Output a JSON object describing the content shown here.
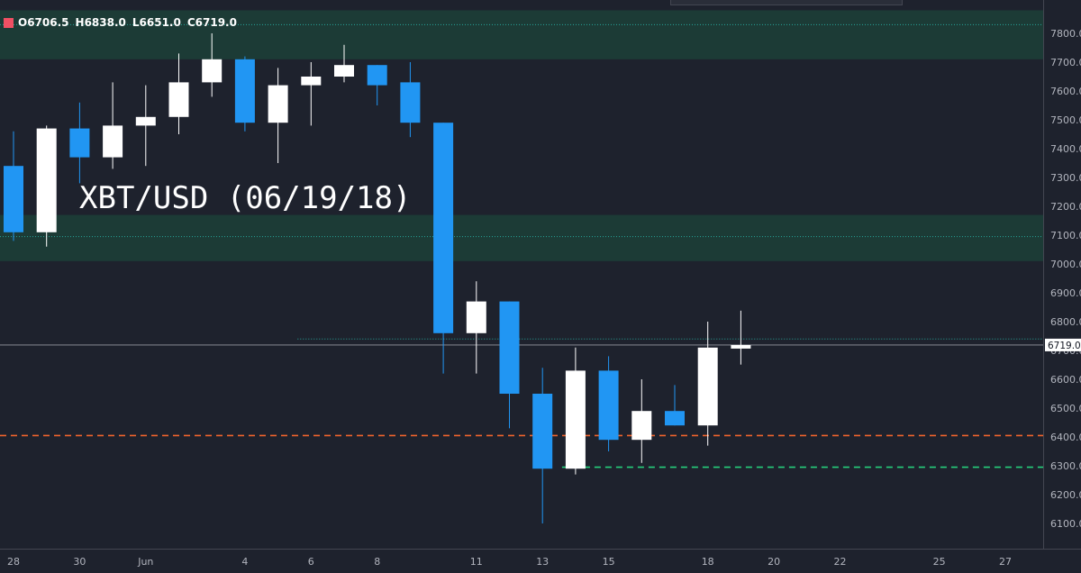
{
  "symbol_title": "XBT/USD (06/19/18)",
  "ohlc": {
    "open_label": "O",
    "open": "6706.5",
    "high_label": "H",
    "high": "6838.0",
    "low_label": "L",
    "low": "6651.0",
    "close_label": "C",
    "close": "6719.0"
  },
  "colors": {
    "background": "#1e222d",
    "up_candle": "#ffffff",
    "down_candle": "#2196f3",
    "zone": "#1c3b36",
    "zone_line": "#26a69a",
    "support_line": "#f0642d",
    "low_line": "#26d07c",
    "flag": "#f05064"
  },
  "chart_data": {
    "type": "candlestick",
    "ylim": [
      6000,
      7900
    ],
    "y_ticks": [
      "7800.0",
      "7700.0",
      "7600.0",
      "7500.0",
      "7400.0",
      "7300.0",
      "7200.0",
      "7100.0",
      "7000.0",
      "6900.0",
      "6800.0",
      "6700.0",
      "6600.0",
      "6500.0",
      "6400.0",
      "6300.0",
      "6200.0",
      "6100.0"
    ],
    "x_ticks": [
      {
        "label": "28",
        "day": 0
      },
      {
        "label": "30",
        "day": 2
      },
      {
        "label": "Jun",
        "day": 4
      },
      {
        "label": "4",
        "day": 7
      },
      {
        "label": "6",
        "day": 9
      },
      {
        "label": "8",
        "day": 11
      },
      {
        "label": "11",
        "day": 14
      },
      {
        "label": "13",
        "day": 16
      },
      {
        "label": "15",
        "day": 18
      },
      {
        "label": "18",
        "day": 21
      },
      {
        "label": "20",
        "day": 23
      },
      {
        "label": "22",
        "day": 25
      },
      {
        "label": "25",
        "day": 28
      },
      {
        "label": "27",
        "day": 30
      }
    ],
    "candles": [
      {
        "day": 0,
        "o": 7340,
        "h": 7460,
        "l": 7080,
        "c": 7110
      },
      {
        "day": 1,
        "o": 7110,
        "h": 7480,
        "l": 7060,
        "c": 7470
      },
      {
        "day": 2,
        "o": 7470,
        "h": 7560,
        "l": 7280,
        "c": 7370
      },
      {
        "day": 3,
        "o": 7370,
        "h": 7630,
        "l": 7330,
        "c": 7480
      },
      {
        "day": 4,
        "o": 7480,
        "h": 7620,
        "l": 7340,
        "c": 7510
      },
      {
        "day": 5,
        "o": 7510,
        "h": 7730,
        "l": 7450,
        "c": 7630
      },
      {
        "day": 6,
        "o": 7630,
        "h": 7800,
        "l": 7580,
        "c": 7710
      },
      {
        "day": 7,
        "o": 7710,
        "h": 7720,
        "l": 7460,
        "c": 7490
      },
      {
        "day": 8,
        "o": 7490,
        "h": 7680,
        "l": 7350,
        "c": 7620
      },
      {
        "day": 9,
        "o": 7620,
        "h": 7700,
        "l": 7480,
        "c": 7650
      },
      {
        "day": 10,
        "o": 7650,
        "h": 7760,
        "l": 7630,
        "c": 7690
      },
      {
        "day": 11,
        "o": 7690,
        "h": 7690,
        "l": 7550,
        "c": 7620
      },
      {
        "day": 12,
        "o": 7630,
        "h": 7700,
        "l": 7440,
        "c": 7490
      },
      {
        "day": 13,
        "o": 7490,
        "h": 7490,
        "l": 6620,
        "c": 6760
      },
      {
        "day": 14,
        "o": 6760,
        "h": 6940,
        "l": 6620,
        "c": 6870
      },
      {
        "day": 15,
        "o": 6870,
        "h": 6870,
        "l": 6430,
        "c": 6550
      },
      {
        "day": 16,
        "o": 6550,
        "h": 6640,
        "l": 6100,
        "c": 6290
      },
      {
        "day": 17,
        "o": 6290,
        "h": 6710,
        "l": 6270,
        "c": 6630
      },
      {
        "day": 18,
        "o": 6630,
        "h": 6680,
        "l": 6350,
        "c": 6390
      },
      {
        "day": 19,
        "o": 6390,
        "h": 6600,
        "l": 6310,
        "c": 6490
      },
      {
        "day": 20,
        "o": 6490,
        "h": 6580,
        "l": 6440,
        "c": 6440
      },
      {
        "day": 21,
        "o": 6440,
        "h": 6800,
        "l": 6370,
        "c": 6710
      },
      {
        "day": 22,
        "o": 6706.5,
        "h": 6838,
        "l": 6651,
        "c": 6719
      }
    ],
    "zones": [
      {
        "from": 7710,
        "to": 7880,
        "line": 7830
      },
      {
        "from": 7010,
        "to": 7170,
        "line": 7095
      }
    ],
    "levels": [
      {
        "price": 6740,
        "style": "dotted",
        "color_key": "zone_line",
        "from_day": 9
      },
      {
        "price": 6405,
        "style": "dashed",
        "color_key": "support_line",
        "from_day": -1
      },
      {
        "price": 6295,
        "style": "dashed",
        "color_key": "low_line",
        "from_day": 17
      }
    ],
    "last_price": 6719.0,
    "last_price_label": "6719.0"
  }
}
